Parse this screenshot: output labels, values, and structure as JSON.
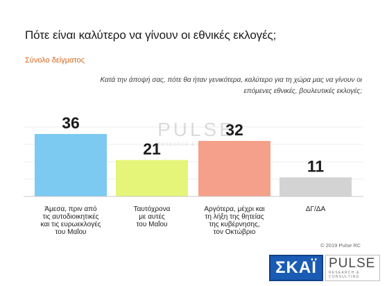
{
  "title": "Πότε είναι καλύτερο να γίνουν οι εθνικές εκλογές;",
  "subtitle": "Σύνολο δείγματος",
  "question": "Κατά την άποψή σας, πότε θα ήταν γενικότερα, καλύτερο για τη χώρα μας να γίνουν οι επόμενες εθνικές, βουλευτικές εκλογές;",
  "copyright": "© 2019 Pulse RC",
  "watermark": {
    "name": "PULSE",
    "tagline": "RESEARCH & CONSULTING"
  },
  "logos": {
    "broadcaster": "ΣΚΑΪ",
    "pollster": "PULSE",
    "pollster_tagline": "RESEARCH & CONSULTING"
  },
  "chart_data": {
    "type": "bar",
    "title": "",
    "xlabel": "",
    "ylabel": "",
    "ylim": [
      0,
      40
    ],
    "grid": true,
    "legend": "none",
    "categories": [
      [
        "Άμεσα, πριν από",
        "τις αυτοδιοικητικές",
        "και τις ευρωεκλογές",
        "του Μαΐου"
      ],
      [
        "Ταυτόχρονα",
        "με αυτές",
        "του Μαΐου"
      ],
      [
        "Αργότερα, μέχρι και",
        "τη λήξη της θητείας",
        "της κυβέρνησης,",
        "τον Οκτώβριο"
      ],
      [
        "ΔΓ/ΔΑ"
      ]
    ],
    "values": [
      36,
      21,
      32,
      11
    ],
    "colors": [
      "#7cc9f2",
      "#e5f57a",
      "#f5a08a",
      "#d3d3d3"
    ]
  }
}
